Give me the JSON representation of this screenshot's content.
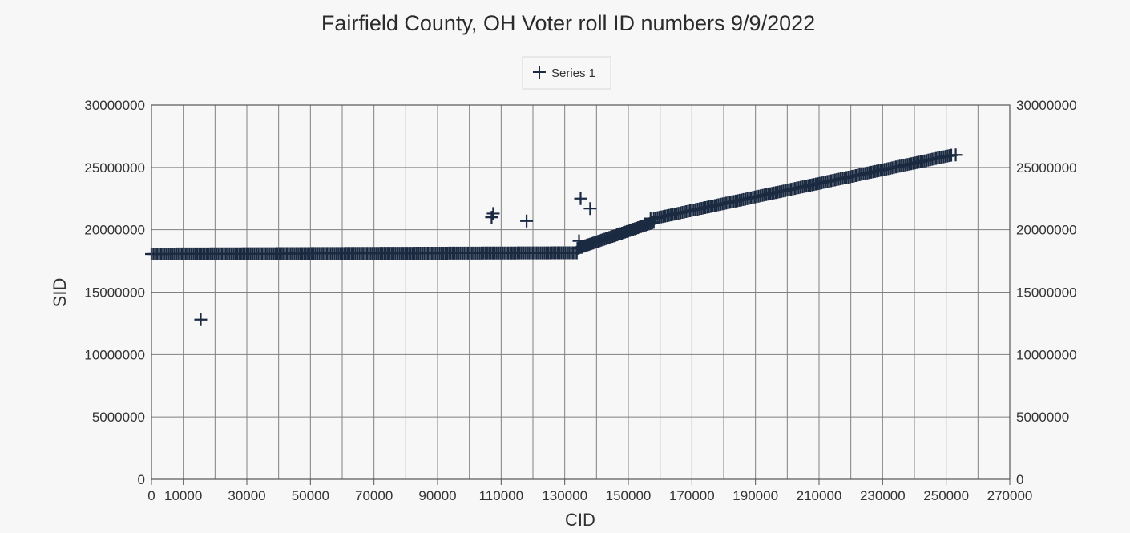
{
  "chart_data": {
    "type": "scatter",
    "title": "Fairfield County, OH Voter roll ID numbers 9/9/2022",
    "xlabel": "CID",
    "ylabel": "SID",
    "xlim": [
      0,
      270000
    ],
    "ylim": [
      0,
      30000000
    ],
    "x_ticks": [
      0,
      10000,
      30000,
      50000,
      70000,
      90000,
      110000,
      130000,
      150000,
      170000,
      190000,
      210000,
      230000,
      250000,
      270000
    ],
    "y_ticks": [
      0,
      5000000,
      10000000,
      15000000,
      20000000,
      25000000,
      30000000
    ],
    "grid": true,
    "legend_position": "top-center",
    "secondary_y_axis": true,
    "marker": "plus",
    "colors": {
      "series": "#1b2a41",
      "grid": "#808080",
      "axis_text": "#333333",
      "background": "#f8f7f8"
    },
    "series": [
      {
        "name": "Series 1",
        "segments": [
          {
            "x_start": 0,
            "x_end": 134000,
            "y_start": 18050000,
            "y_end": 18150000,
            "step": 600
          },
          {
            "x_start": 134000,
            "x_end": 158000,
            "y_start": 18500000,
            "y_end": 20600000,
            "step": 500
          },
          {
            "x_start": 158000,
            "x_end": 252000,
            "y_start": 20900000,
            "y_end": 26000000,
            "step": 600
          }
        ],
        "points": [
          [
            15500,
            12800000
          ],
          [
            107000,
            21000000
          ],
          [
            107500,
            21300000
          ],
          [
            118000,
            20700000
          ],
          [
            134500,
            19100000
          ],
          [
            135000,
            22500000
          ],
          [
            138000,
            21700000
          ],
          [
            157000,
            20900000
          ],
          [
            253000,
            26000000
          ]
        ]
      }
    ]
  }
}
